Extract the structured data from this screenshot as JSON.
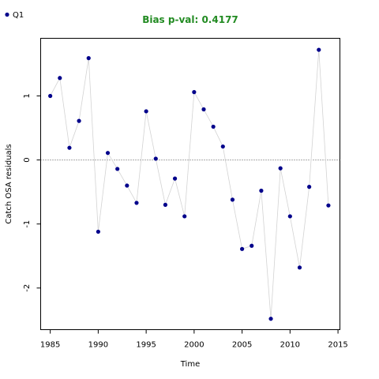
{
  "chart_data": {
    "type": "scatter",
    "title": "Bias p-val: 0.4177",
    "title_color": "#228B22",
    "xlabel": "Time",
    "ylabel": "Catch OSA residuals",
    "xlim": [
      1984,
      2015.2
    ],
    "ylim": [
      -2.65,
      1.9
    ],
    "x_ticks": [
      1985,
      1990,
      1995,
      2000,
      2005,
      2010,
      2015
    ],
    "y_ticks": [
      -2,
      -1,
      0,
      1
    ],
    "reference_line": 0,
    "point_color": "#00008B",
    "line_color": "#d3d3d3",
    "legend": {
      "position": "top-left",
      "label": "Q1"
    },
    "series": [
      {
        "name": "Q1",
        "x": [
          1985,
          1986,
          1987,
          1988,
          1989,
          1990,
          1991,
          1992,
          1993,
          1994,
          1995,
          1996,
          1997,
          1998,
          1999,
          2000,
          2001,
          2002,
          2003,
          2004,
          2005,
          2006,
          2007,
          2008,
          2009,
          2010,
          2011,
          2012,
          2013,
          2014
        ],
        "y": [
          1.0,
          1.28,
          0.19,
          0.61,
          1.59,
          -1.12,
          0.11,
          -0.14,
          -0.4,
          -0.67,
          0.76,
          0.02,
          -0.7,
          -0.29,
          -0.88,
          1.06,
          0.79,
          0.52,
          0.21,
          -0.62,
          -1.39,
          -1.34,
          -0.48,
          -2.48,
          -0.13,
          -0.88,
          -1.68,
          -0.42,
          1.72,
          -0.71
        ]
      }
    ]
  }
}
